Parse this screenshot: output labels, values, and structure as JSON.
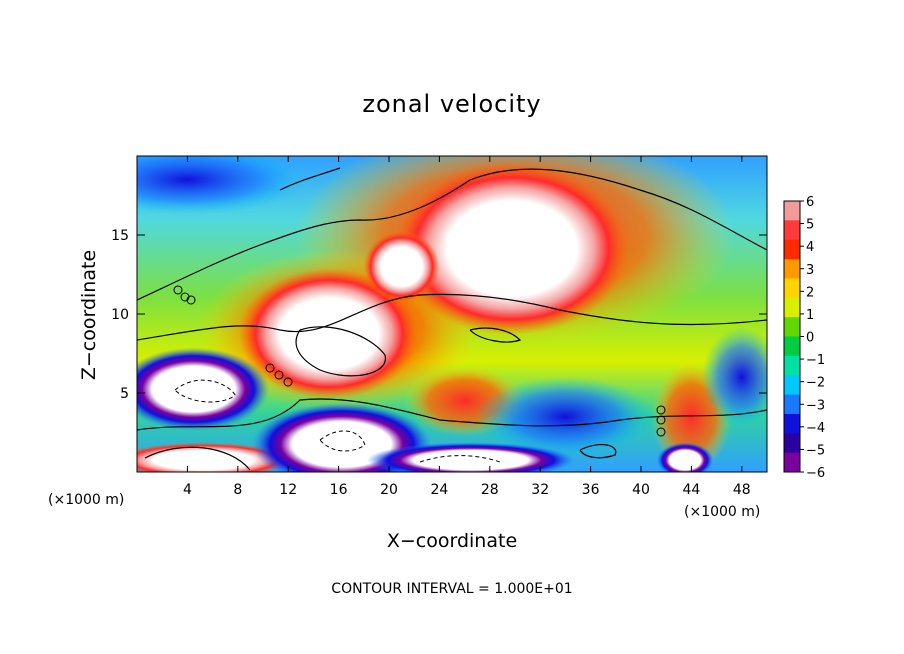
{
  "chart_data": {
    "type": "heatmap",
    "title": "zonal velocity",
    "xlabel": "X−coordinate",
    "ylabel": "Z−coordinate",
    "x_unit": "(×1000 m)",
    "x_unit_right": "(×1000 m)",
    "footer": "CONTOUR INTERVAL = 1.000E+01",
    "xlim": [
      0,
      50
    ],
    "ylim": [
      0,
      20
    ],
    "xticks": [
      4,
      8,
      12,
      16,
      20,
      24,
      28,
      32,
      36,
      40,
      44,
      48
    ],
    "yticks": [
      5,
      10,
      15
    ],
    "colorbar": {
      "ticks": [
        6,
        5,
        4,
        3,
        2,
        1,
        0,
        -1,
        -2,
        -3,
        -4,
        -5,
        -6
      ],
      "range": [
        -6,
        6
      ],
      "colors": [
        "#f29b9b",
        "#ff3a3a",
        "#ff2a00",
        "#ff9900",
        "#ffd400",
        "#d8f000",
        "#60d800",
        "#00cc44",
        "#00e0a0",
        "#00c8ff",
        "#1a7aff",
        "#1010dd",
        "#2a00a0",
        "#7a00a0"
      ]
    },
    "saturated_regions": [
      {
        "x": [
          23.5,
          36.0
        ],
        "y": [
          10.5,
          17.8
        ],
        "sign": "positive"
      },
      {
        "x": [
          10.5,
          20.0
        ],
        "y": [
          6.0,
          11.5
        ],
        "sign": "positive"
      },
      {
        "x": [
          19.0,
          23.0
        ],
        "y": [
          11.5,
          14.5
        ],
        "sign": "positive"
      },
      {
        "x": [
          0.5,
          8.5
        ],
        "y": [
          3.5,
          7.0
        ],
        "sign": "negative"
      },
      {
        "x": [
          0.5,
          10.0
        ],
        "y": [
          0.0,
          1.5
        ],
        "sign": "positive"
      },
      {
        "x": [
          11.5,
          21.0
        ],
        "y": [
          0.0,
          3.5
        ],
        "sign": "negative"
      },
      {
        "x": [
          21.0,
          32.0
        ],
        "y": [
          0.0,
          1.5
        ],
        "sign": "negative"
      },
      {
        "x": [
          42.0,
          45.0
        ],
        "y": [
          0.0,
          1.5
        ],
        "sign": "negative"
      }
    ]
  }
}
